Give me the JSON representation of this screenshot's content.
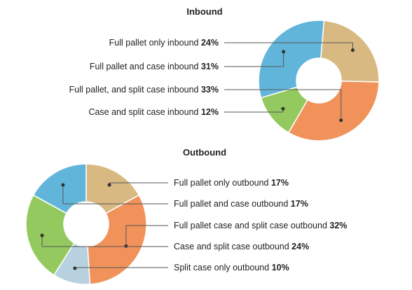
{
  "chart_data": [
    {
      "type": "pie",
      "title": "Inbound",
      "categories": [
        "Full pallet only inbound",
        "Full pallet and case inbound",
        "Full pallet, and split case inbound",
        "Case and split case inbound"
      ],
      "values": [
        24,
        31,
        33,
        12
      ],
      "value_labels": [
        "24%",
        "31%",
        "33%",
        "12%"
      ],
      "colors": [
        "#d9b982",
        "#62b5da",
        "#f0925a",
        "#93c95e"
      ],
      "order": [
        0,
        2,
        3,
        1
      ]
    },
    {
      "type": "pie",
      "title": "Outbound",
      "categories": [
        "Full pallet only outbound",
        "Full pallet and case outbound",
        "Full pallet case and split case outbound",
        "Case and split case outbound",
        "Split case only outbound"
      ],
      "values": [
        17,
        17,
        32,
        24,
        10
      ],
      "value_labels": [
        "17%",
        "17%",
        "32%",
        "24%",
        "10%"
      ],
      "colors": [
        "#d9b982",
        "#62b5da",
        "#f0925a",
        "#93c95e",
        "#b7d2de"
      ],
      "order": [
        0,
        2,
        4,
        3,
        1
      ]
    }
  ]
}
